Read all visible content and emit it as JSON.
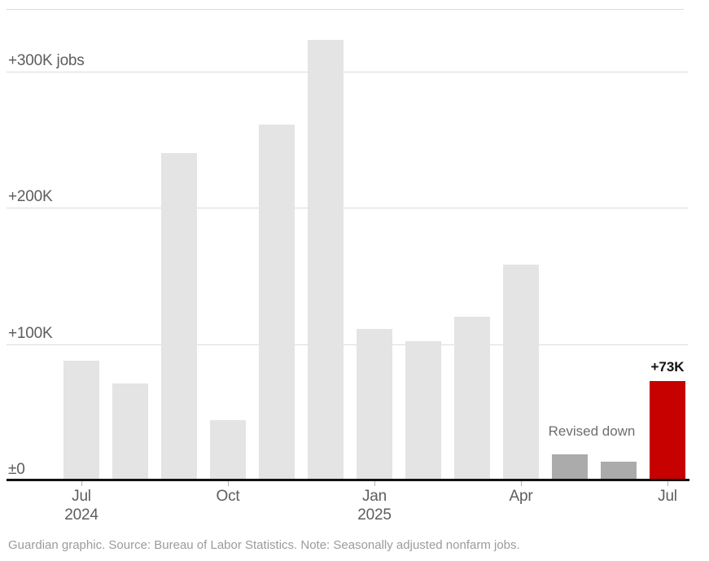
{
  "chart_data": {
    "type": "bar",
    "title": "",
    "unit": "jobs added per month, thousands",
    "categories": [
      "Jul 2024",
      "Aug 2024",
      "Sep 2024",
      "Oct 2024",
      "Nov 2024",
      "Dec 2024",
      "Jan 2025",
      "Feb 2025",
      "Mar 2025",
      "Apr 2025",
      "May 2025",
      "Jun 2025",
      "Jul 2025"
    ],
    "values": [
      88,
      71,
      240,
      44,
      261,
      323,
      111,
      102,
      120,
      158,
      19,
      14,
      73
    ],
    "bar_styles": [
      "default",
      "default",
      "default",
      "default",
      "default",
      "default",
      "default",
      "default",
      "default",
      "default",
      "revised",
      "revised",
      "highlight"
    ],
    "ylim": [
      0,
      345
    ],
    "grid": true,
    "legend": "none",
    "y_ticks": [
      {
        "value": 0,
        "label": "±0"
      },
      {
        "value": 100,
        "label": "+100K"
      },
      {
        "value": 200,
        "label": "+200K"
      },
      {
        "value": 300,
        "label": "+300K jobs"
      }
    ],
    "x_ticks": [
      {
        "index": 0,
        "line1": "Jul",
        "line2": "2024"
      },
      {
        "index": 3,
        "line1": "Oct",
        "line2": ""
      },
      {
        "index": 6,
        "line1": "Jan",
        "line2": "2025"
      },
      {
        "index": 9,
        "line1": "Apr",
        "line2": ""
      },
      {
        "index": 12,
        "line1": "Jul",
        "line2": ""
      }
    ],
    "annotations": [
      {
        "text": "Revised down",
        "style": "note",
        "anchor_index": 10.5
      },
      {
        "text": "+73K",
        "style": "value",
        "anchor_index": 12
      }
    ],
    "colors": {
      "default": "#e4e4e4",
      "revised": "#ababab",
      "highlight": "#c70000",
      "grid": "#dcdcdc",
      "axis": "#121212",
      "axis_label": "#5d5d5d",
      "note": "#6e6e6e",
      "value_label": "#121212"
    }
  },
  "footer": {
    "text": "Guardian graphic. Source: Bureau of Labor Statistics. Note: Seasonally adjusted nonfarm jobs."
  }
}
